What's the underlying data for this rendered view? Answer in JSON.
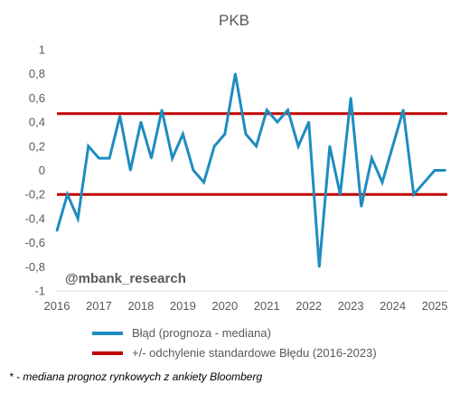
{
  "chart_data": {
    "type": "line",
    "title": "PKB",
    "xlabel": "",
    "ylabel": "",
    "ylim": [
      -1,
      1
    ],
    "y_ticks": [
      "1",
      "0,8",
      "0,6",
      "0,4",
      "0,2",
      "0",
      "-0,2",
      "-0,4",
      "-0,6",
      "-0,8",
      "-1"
    ],
    "x_range": [
      2016,
      2025.3
    ],
    "x_ticks": [
      "2016",
      "2017",
      "2018",
      "2019",
      "2020",
      "2021",
      "2022",
      "2023",
      "2024",
      "2025"
    ],
    "grid": false,
    "legend_position": "bottom",
    "watermark": "@mbank_research",
    "series": [
      {
        "name": "Błąd (prognoza - mediana)",
        "color": "#1F8CC0",
        "x": [
          2016.0,
          2016.25,
          2016.5,
          2016.75,
          2017.0,
          2017.25,
          2017.5,
          2017.75,
          2018.0,
          2018.25,
          2018.5,
          2018.75,
          2019.0,
          2019.25,
          2019.5,
          2019.75,
          2020.0,
          2020.25,
          2020.5,
          2020.75,
          2021.0,
          2021.25,
          2021.5,
          2021.75,
          2022.0,
          2022.25,
          2022.5,
          2022.75,
          2023.0,
          2023.25,
          2023.5,
          2023.75,
          2024.0,
          2024.25,
          2024.5,
          2024.75,
          2025.0,
          2025.25
        ],
        "values": [
          -0.5,
          -0.2,
          -0.4,
          0.2,
          0.1,
          0.1,
          0.45,
          0.0,
          0.4,
          0.1,
          0.5,
          0.1,
          0.3,
          0.0,
          -0.1,
          0.2,
          0.3,
          0.8,
          0.3,
          0.2,
          0.5,
          0.4,
          0.5,
          0.2,
          0.4,
          -0.8,
          0.2,
          -0.2,
          0.6,
          -0.3,
          0.1,
          -0.1,
          0.2,
          0.5,
          -0.2,
          -0.1,
          0.0,
          0.0
        ]
      },
      {
        "name": "+/- odchylenie standardowe Błędu (2016-2023)",
        "color": "#C00000",
        "upper": 0.47,
        "lower": -0.2
      }
    ]
  },
  "footnote": "* - mediana prognoz rynkowych z ankiety Bloomberg"
}
